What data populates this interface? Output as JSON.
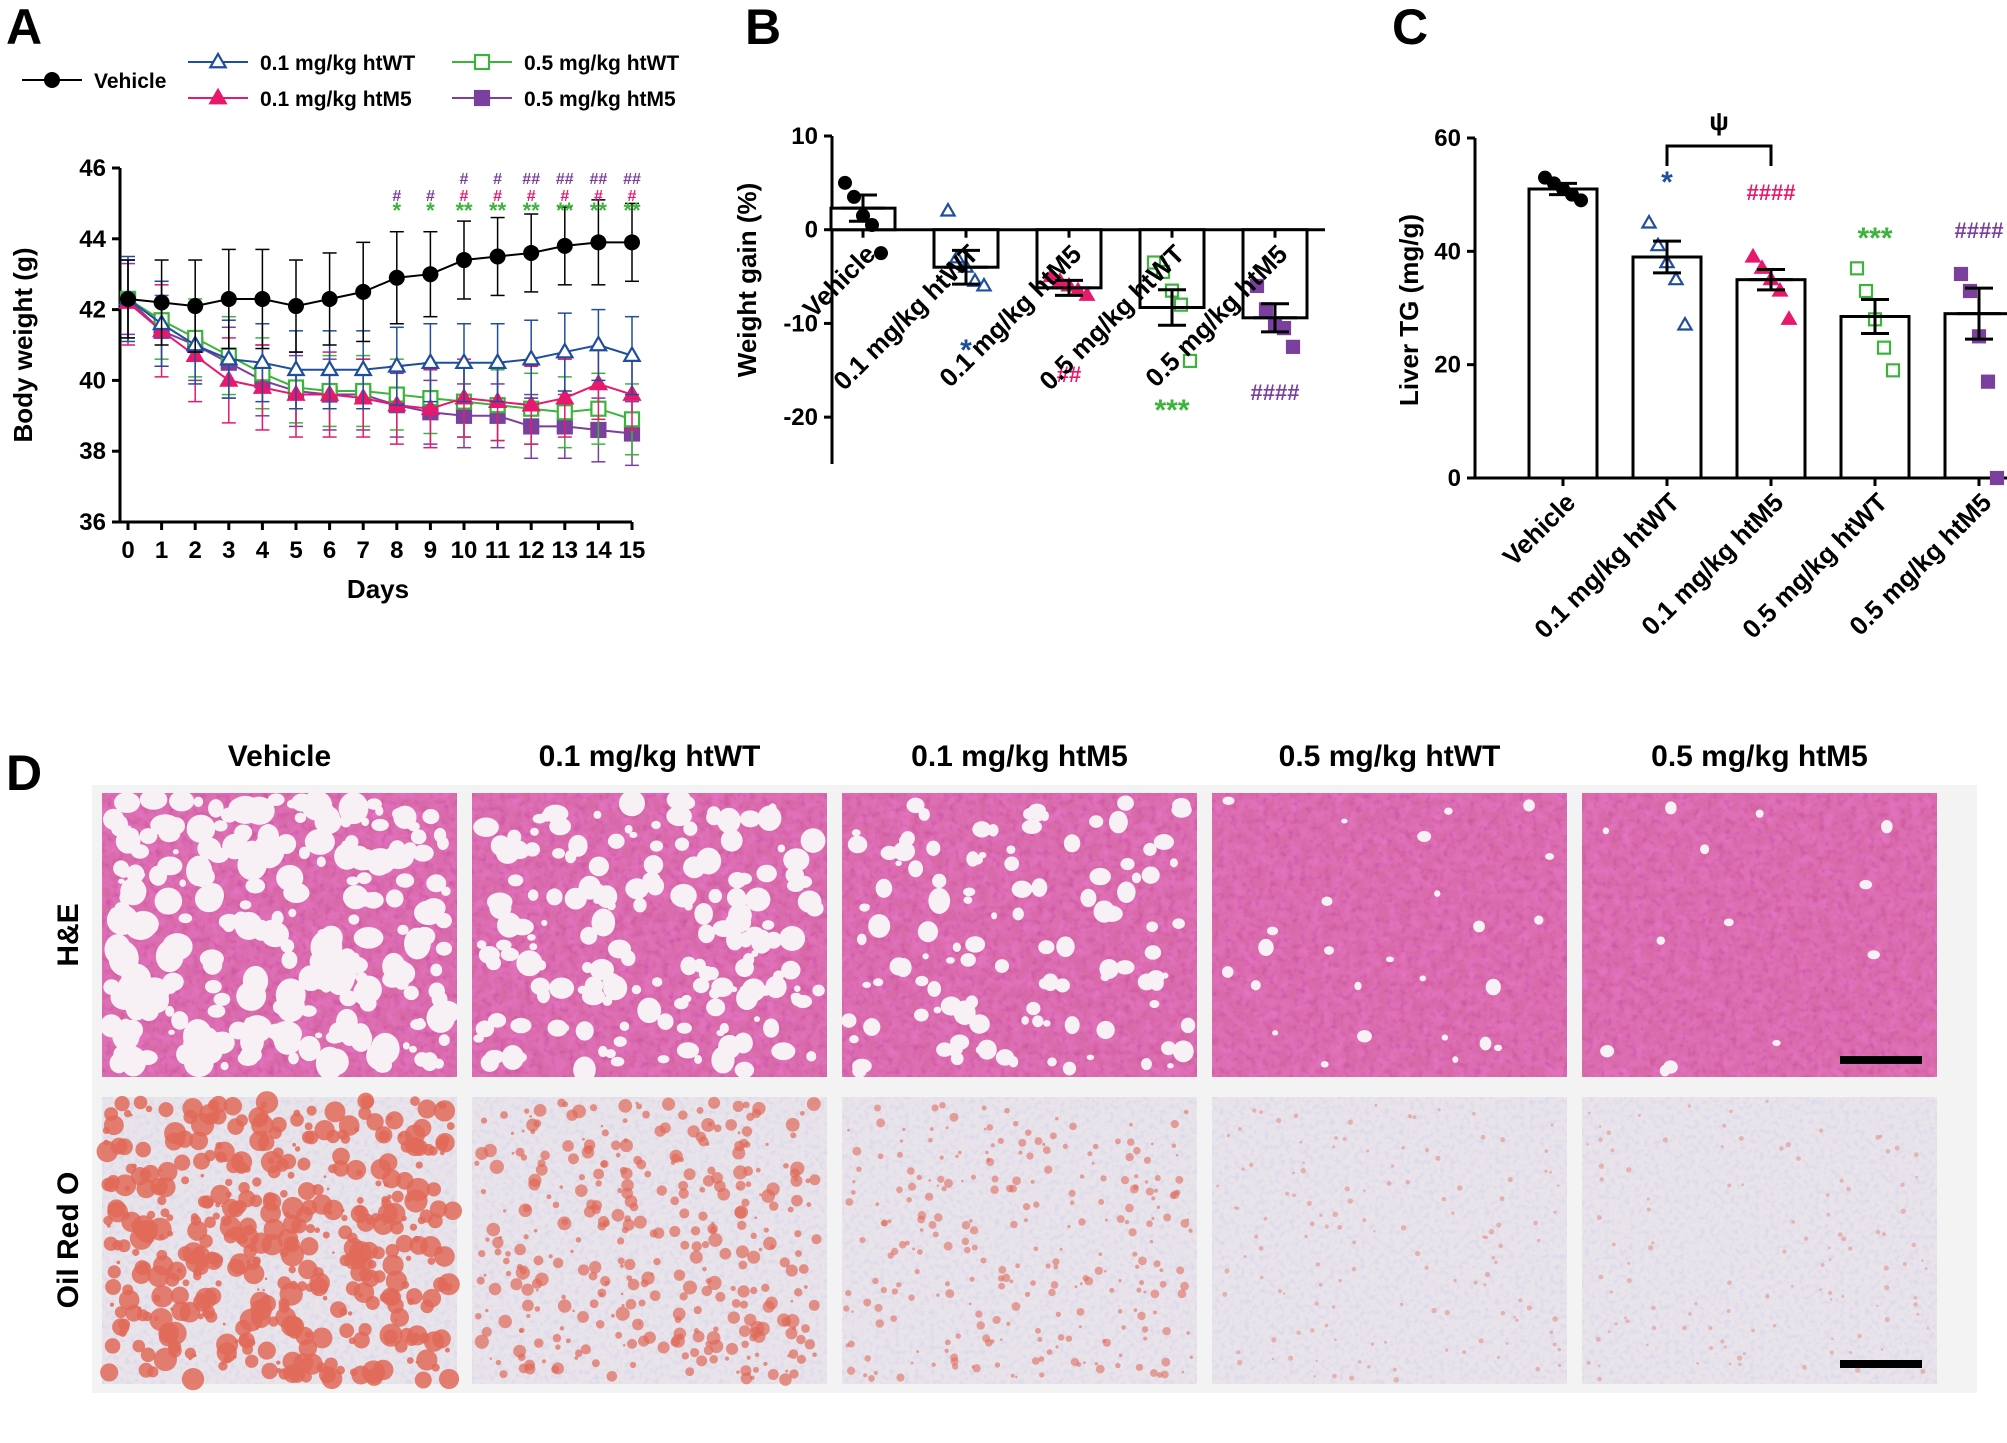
{
  "colors": {
    "vehicle": "#000000",
    "htWT01": "#1f4e9c",
    "htM5_01": "#e6196c",
    "htWT05": "#3cb43c",
    "htM5_05": "#7b3f9e"
  },
  "panels": {
    "A": "A",
    "B": "B",
    "C": "C",
    "D": "D"
  },
  "chart_data": [
    {
      "type": "line",
      "panel": "A",
      "xlabel": "Days",
      "ylabel": "Body weight (g)",
      "ylim": [
        36,
        46
      ],
      "yticks": [
        36,
        38,
        40,
        42,
        44,
        46
      ],
      "x": [
        0,
        1,
        2,
        3,
        4,
        5,
        6,
        7,
        8,
        9,
        10,
        11,
        12,
        13,
        14,
        15
      ],
      "legend": [
        "Vehicle",
        "0.1 mg/kg htWT",
        "0.5 mg/kg htWT",
        "0.1 mg/kg htM5",
        "0.5 mg/kg htM5"
      ],
      "series": [
        {
          "name": "Vehicle",
          "key": "vehicle",
          "marker": "circle-filled",
          "values": [
            42.3,
            42.2,
            42.1,
            42.3,
            42.3,
            42.1,
            42.3,
            42.5,
            42.9,
            43.0,
            43.4,
            43.5,
            43.6,
            43.8,
            43.9,
            43.9
          ],
          "err": [
            1.1,
            1.2,
            1.3,
            1.4,
            1.4,
            1.3,
            1.3,
            1.4,
            1.3,
            1.2,
            1.1,
            1.1,
            1.1,
            1.1,
            1.2,
            1.1
          ]
        },
        {
          "name": "0.1 mg/kg htWT",
          "key": "htWT01",
          "marker": "triangle-open",
          "values": [
            42.3,
            41.6,
            41.0,
            40.6,
            40.5,
            40.3,
            40.3,
            40.3,
            40.4,
            40.5,
            40.5,
            40.5,
            40.6,
            40.8,
            41.0,
            40.7
          ],
          "err": [
            1.2,
            1.2,
            1.1,
            1.1,
            1.1,
            1.1,
            1.1,
            1.1,
            1.1,
            1.1,
            1.1,
            1.1,
            1.1,
            1.1,
            1.0,
            1.1
          ]
        },
        {
          "name": "0.1 mg/kg htM5",
          "key": "htM5_01",
          "marker": "triangle-filled",
          "values": [
            42.2,
            41.4,
            40.7,
            40.0,
            39.8,
            39.6,
            39.6,
            39.5,
            39.3,
            39.2,
            39.5,
            39.4,
            39.3,
            39.5,
            39.9,
            39.6
          ],
          "err": [
            1.2,
            1.3,
            1.3,
            1.2,
            1.2,
            1.2,
            1.2,
            1.1,
            1.1,
            1.1,
            1.1,
            1.1,
            1.1,
            1.1,
            1.0,
            1.0
          ]
        },
        {
          "name": "0.5 mg/kg htWT",
          "key": "htWT05",
          "marker": "square-open",
          "values": [
            42.3,
            41.7,
            41.2,
            40.7,
            40.2,
            39.8,
            39.7,
            39.7,
            39.6,
            39.5,
            39.4,
            39.3,
            39.2,
            39.1,
            39.2,
            38.9
          ],
          "err": [
            1.1,
            1.1,
            1.1,
            1.1,
            1.0,
            1.0,
            1.0,
            1.0,
            1.0,
            1.0,
            1.0,
            1.0,
            1.0,
            1.0,
            1.0,
            1.0
          ]
        },
        {
          "name": "0.5 mg/kg htM5",
          "key": "htM5_05",
          "marker": "square-filled",
          "values": [
            42.3,
            41.4,
            41.0,
            40.5,
            40.0,
            39.7,
            39.6,
            39.6,
            39.3,
            39.1,
            39.0,
            39.0,
            38.7,
            38.7,
            38.6,
            38.5
          ],
          "err": [
            1.0,
            1.0,
            1.0,
            1.0,
            1.0,
            1.0,
            1.0,
            1.0,
            0.9,
            0.9,
            0.9,
            0.9,
            0.9,
            0.9,
            0.9,
            0.9
          ]
        }
      ],
      "annotations": [
        {
          "day": 8,
          "rows": [
            {
              "text": "#",
              "key": "htM5_05"
            },
            {
              "text": "*",
              "key": "htWT05"
            }
          ]
        },
        {
          "day": 9,
          "rows": [
            {
              "text": "#",
              "key": "htM5_05"
            },
            {
              "text": "*",
              "key": "htWT05"
            }
          ]
        },
        {
          "day": 10,
          "rows": [
            {
              "text": "#",
              "key": "htM5_05"
            },
            {
              "text": "#",
              "key": "htM5_01"
            },
            {
              "text": "**",
              "key": "htWT05"
            }
          ]
        },
        {
          "day": 11,
          "rows": [
            {
              "text": "#",
              "key": "htM5_05"
            },
            {
              "text": "#",
              "key": "htM5_01"
            },
            {
              "text": "**",
              "key": "htWT05"
            }
          ]
        },
        {
          "day": 12,
          "rows": [
            {
              "text": "##",
              "key": "htM5_05"
            },
            {
              "text": "#",
              "key": "htM5_01"
            },
            {
              "text": "**",
              "key": "htWT05"
            }
          ]
        },
        {
          "day": 13,
          "rows": [
            {
              "text": "##",
              "key": "htM5_05"
            },
            {
              "text": "#",
              "key": "htM5_01"
            },
            {
              "text": "**",
              "key": "htWT05"
            }
          ]
        },
        {
          "day": 14,
          "rows": [
            {
              "text": "##",
              "key": "htM5_05"
            },
            {
              "text": "#",
              "key": "htM5_01"
            },
            {
              "text": "**",
              "key": "htWT05"
            }
          ]
        },
        {
          "day": 15,
          "rows": [
            {
              "text": "##",
              "key": "htM5_05"
            },
            {
              "text": "#",
              "key": "htM5_01"
            },
            {
              "text": "**",
              "key": "htWT05"
            }
          ]
        }
      ]
    },
    {
      "type": "bar",
      "panel": "B",
      "ylabel": "Weight gain (%)",
      "ylim": [
        -25,
        10
      ],
      "yticks": [
        10,
        0,
        -10,
        -20
      ],
      "categories": [
        "Vehicle",
        "0.1 mg/kg htWT",
        "0.1 mg/kg htM5",
        "0.5 mg/kg htWT",
        "0.5 mg/kg htM5"
      ],
      "keys": [
        "vehicle",
        "htWT01",
        "htM5_01",
        "htWT05",
        "htM5_05"
      ],
      "markers": [
        "circle-filled",
        "triangle-open",
        "triangle-filled",
        "square-open",
        "square-filled"
      ],
      "values": [
        2.3,
        -4.0,
        -6.2,
        -8.3,
        -9.4
      ],
      "err": [
        1.4,
        1.8,
        0.8,
        1.9,
        1.5
      ],
      "points": [
        [
          5.0,
          3.5,
          1.5,
          0.5,
          -2.5
        ],
        [
          2.0,
          -3.0,
          -4.0,
          -5.5,
          -6.0
        ],
        [
          -5.0,
          -5.5,
          -6.0,
          -6.5,
          -7.0
        ],
        [
          -3.5,
          -4.5,
          -6.5,
          -8.0,
          -14.0
        ],
        [
          -6.0,
          -8.5,
          -10.0,
          -10.5,
          -12.5
        ]
      ],
      "sig": [
        {
          "text": "",
          "key": "vehicle"
        },
        {
          "text": "*",
          "key": "htWT01"
        },
        {
          "text": "##",
          "key": "htM5_01"
        },
        {
          "text": "***",
          "key": "htWT05"
        },
        {
          "text": "####",
          "key": "htM5_05"
        }
      ]
    },
    {
      "type": "bar",
      "panel": "C",
      "ylabel": "Liver TG  (mg/g)",
      "ylim": [
        0,
        60
      ],
      "yticks": [
        0,
        20,
        40,
        60
      ],
      "categories": [
        "Vehicle",
        "0.1 mg/kg htWT",
        "0.1 mg/kg htM5",
        "0.5 mg/kg htWT",
        "0.5 mg/kg htM5"
      ],
      "keys": [
        "vehicle",
        "htWT01",
        "htM5_01",
        "htWT05",
        "htM5_05"
      ],
      "markers": [
        "circle-filled",
        "triangle-open",
        "triangle-filled",
        "square-open",
        "square-filled"
      ],
      "values": [
        51.0,
        39.0,
        35.0,
        28.5,
        29.0
      ],
      "err": [
        1.0,
        2.8,
        1.8,
        3.0,
        4.5
      ],
      "points": [
        [
          53.0,
          52.0,
          51.0,
          50.0,
          49.0
        ],
        [
          45.0,
          41.0,
          38.0,
          35.0,
          27.0
        ],
        [
          39.0,
          37.0,
          35.0,
          33.0,
          28.0
        ],
        [
          37.0,
          33.0,
          28.0,
          23.0,
          19.0
        ],
        [
          36.0,
          33.0,
          25.0,
          17.0,
          0
        ]
      ],
      "sig": [
        {
          "text": "",
          "key": "vehicle"
        },
        {
          "text": "*",
          "key": "htWT01"
        },
        {
          "text": "####",
          "key": "htM5_01"
        },
        {
          "text": "***",
          "key": "htWT05"
        },
        {
          "text": "####",
          "key": "htM5_05"
        }
      ],
      "bracket": {
        "from": 1,
        "to": 2,
        "text": "ψ"
      }
    }
  ],
  "histology": {
    "columns": [
      "Vehicle",
      "0.1 mg/kg htWT",
      "0.1 mg/kg htM5",
      "0.5 mg/kg htWT",
      "0.5 mg/kg htM5"
    ],
    "rows": [
      "H&E",
      "Oil Red O"
    ],
    "steatosis_level": [
      1.0,
      0.7,
      0.45,
      0.1,
      0.05
    ]
  }
}
